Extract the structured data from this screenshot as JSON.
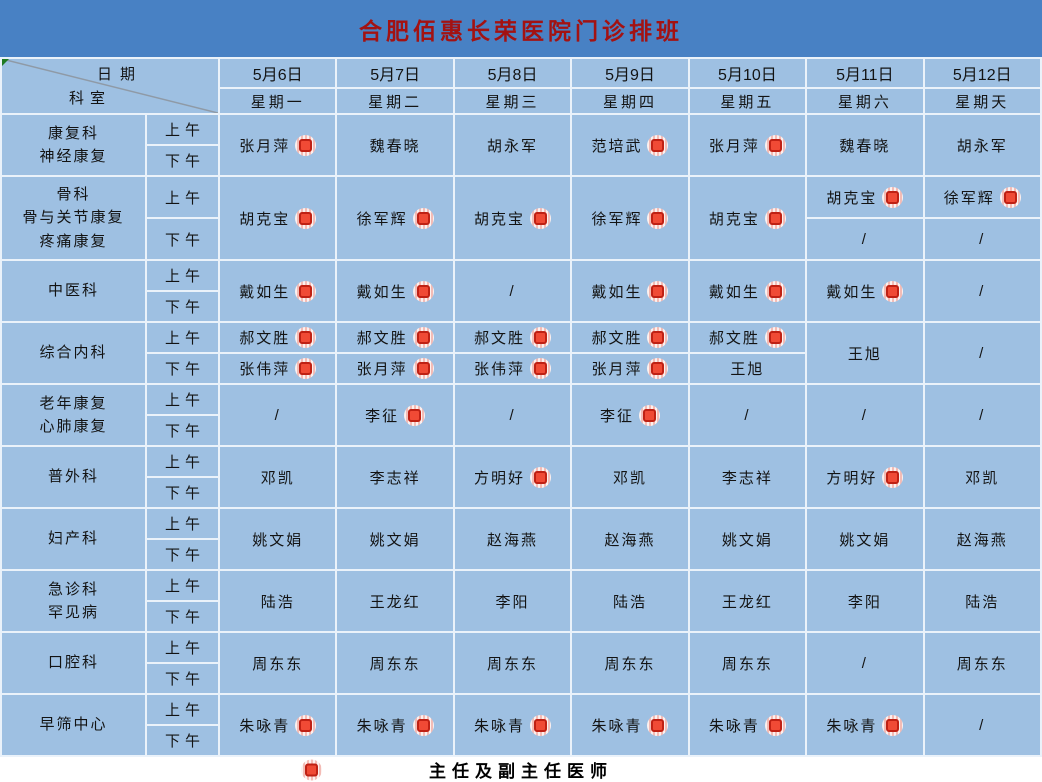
{
  "title": "合肥佰惠长荣医院门诊排班",
  "corner": {
    "top_label": "日期",
    "bottom_label": "科室"
  },
  "time_slots": [
    "上午",
    "下午"
  ],
  "columns": [
    {
      "date": "5月6日",
      "weekday": "星期一"
    },
    {
      "date": "5月7日",
      "weekday": "星期二"
    },
    {
      "date": "5月8日",
      "weekday": "星期三"
    },
    {
      "date": "5月9日",
      "weekday": "星期四"
    },
    {
      "date": "5月10日",
      "weekday": "星期五"
    },
    {
      "date": "5月11日",
      "weekday": "星期六"
    },
    {
      "date": "5月12日",
      "weekday": "星期天"
    }
  ],
  "rows": [
    {
      "department": [
        "康复科",
        "神经康复"
      ],
      "cells": [
        {
          "span": "both",
          "name": "张月萍",
          "badge": true
        },
        {
          "span": "both",
          "name": "魏春晓",
          "badge": false
        },
        {
          "span": "both",
          "name": "胡永军",
          "badge": false
        },
        {
          "span": "both",
          "name": "范培武",
          "badge": true
        },
        {
          "span": "both",
          "name": "张月萍",
          "badge": true
        },
        {
          "span": "both",
          "name": "魏春晓",
          "badge": false
        },
        {
          "span": "both",
          "name": "胡永军",
          "badge": false
        }
      ]
    },
    {
      "department": [
        "骨科",
        "骨与关节康复",
        "疼痛康复"
      ],
      "cells": [
        {
          "span": "both",
          "name": "胡克宝",
          "badge": true
        },
        {
          "span": "both",
          "name": "徐军辉",
          "badge": true
        },
        {
          "span": "both",
          "name": "胡克宝",
          "badge": true
        },
        {
          "span": "both",
          "name": "徐军辉",
          "badge": true
        },
        {
          "span": "both",
          "name": "胡克宝",
          "badge": true
        },
        {
          "span": "split",
          "am": {
            "name": "胡克宝",
            "badge": true
          },
          "pm": {
            "name": "/",
            "badge": false
          }
        },
        {
          "span": "split",
          "am": {
            "name": "徐军辉",
            "badge": true
          },
          "pm": {
            "name": "/",
            "badge": false
          }
        }
      ]
    },
    {
      "department": [
        "中医科"
      ],
      "cells": [
        {
          "span": "both",
          "name": "戴如生",
          "badge": true
        },
        {
          "span": "both",
          "name": "戴如生",
          "badge": true
        },
        {
          "span": "both",
          "name": "/",
          "badge": false
        },
        {
          "span": "both",
          "name": "戴如生",
          "badge": true
        },
        {
          "span": "both",
          "name": "戴如生",
          "badge": true
        },
        {
          "span": "both",
          "name": "戴如生",
          "badge": true
        },
        {
          "span": "both",
          "name": "/",
          "badge": false
        }
      ]
    },
    {
      "department": [
        "综合内科"
      ],
      "cells": [
        {
          "span": "split",
          "am": {
            "name": "郝文胜",
            "badge": true
          },
          "pm": {
            "name": "张伟萍",
            "badge": true
          }
        },
        {
          "span": "split",
          "am": {
            "name": "郝文胜",
            "badge": true
          },
          "pm": {
            "name": "张月萍",
            "badge": true
          }
        },
        {
          "span": "split",
          "am": {
            "name": "郝文胜",
            "badge": true
          },
          "pm": {
            "name": "张伟萍",
            "badge": true
          }
        },
        {
          "span": "split",
          "am": {
            "name": "郝文胜",
            "badge": true
          },
          "pm": {
            "name": "张月萍",
            "badge": true
          }
        },
        {
          "span": "split",
          "am": {
            "name": "郝文胜",
            "badge": true
          },
          "pm": {
            "name": "王旭",
            "badge": false
          }
        },
        {
          "span": "both",
          "name": "王旭",
          "badge": false
        },
        {
          "span": "both",
          "name": "/",
          "badge": false
        }
      ]
    },
    {
      "department": [
        "老年康复",
        "心肺康复"
      ],
      "cells": [
        {
          "span": "both",
          "name": "/",
          "badge": false
        },
        {
          "span": "both",
          "name": "李征",
          "badge": true
        },
        {
          "span": "both",
          "name": "/",
          "badge": false
        },
        {
          "span": "both",
          "name": "李征",
          "badge": true
        },
        {
          "span": "both",
          "name": "/",
          "badge": false
        },
        {
          "span": "both",
          "name": "/",
          "badge": false
        },
        {
          "span": "both",
          "name": "/",
          "badge": false
        }
      ]
    },
    {
      "department": [
        "普外科"
      ],
      "cells": [
        {
          "span": "both",
          "name": "邓凯",
          "badge": false
        },
        {
          "span": "both",
          "name": "李志祥",
          "badge": false
        },
        {
          "span": "both",
          "name": "方明好",
          "badge": true
        },
        {
          "span": "both",
          "name": "邓凯",
          "badge": false
        },
        {
          "span": "both",
          "name": "李志祥",
          "badge": false
        },
        {
          "span": "both",
          "name": "方明好",
          "badge": true
        },
        {
          "span": "both",
          "name": "邓凯",
          "badge": false
        }
      ]
    },
    {
      "department": [
        "妇产科"
      ],
      "cells": [
        {
          "span": "both",
          "name": "姚文娟",
          "badge": false
        },
        {
          "span": "both",
          "name": "姚文娟",
          "badge": false
        },
        {
          "span": "both",
          "name": "赵海燕",
          "badge": false
        },
        {
          "span": "both",
          "name": "赵海燕",
          "badge": false
        },
        {
          "span": "both",
          "name": "姚文娟",
          "badge": false
        },
        {
          "span": "both",
          "name": "姚文娟",
          "badge": false
        },
        {
          "span": "both",
          "name": "赵海燕",
          "badge": false
        }
      ]
    },
    {
      "department": [
        "急诊科",
        "罕见病"
      ],
      "cells": [
        {
          "span": "both",
          "name": "陆浩",
          "badge": false
        },
        {
          "span": "both",
          "name": "王龙红",
          "badge": false
        },
        {
          "span": "both",
          "name": "李阳",
          "badge": false
        },
        {
          "span": "both",
          "name": "陆浩",
          "badge": false
        },
        {
          "span": "both",
          "name": "王龙红",
          "badge": false
        },
        {
          "span": "both",
          "name": "李阳",
          "badge": false
        },
        {
          "span": "both",
          "name": "陆浩",
          "badge": false
        }
      ]
    },
    {
      "department": [
        "口腔科"
      ],
      "cells": [
        {
          "span": "both",
          "name": "周东东",
          "badge": false
        },
        {
          "span": "both",
          "name": "周东东",
          "badge": false
        },
        {
          "span": "both",
          "name": "周东东",
          "badge": false
        },
        {
          "span": "both",
          "name": "周东东",
          "badge": false
        },
        {
          "span": "both",
          "name": "周东东",
          "badge": false
        },
        {
          "span": "both",
          "name": "/",
          "badge": false
        },
        {
          "span": "both",
          "name": "周东东",
          "badge": false
        }
      ]
    },
    {
      "department": [
        "早筛中心"
      ],
      "cells": [
        {
          "span": "both",
          "name": "朱咏青",
          "badge": true
        },
        {
          "span": "both",
          "name": "朱咏青",
          "badge": true
        },
        {
          "span": "both",
          "name": "朱咏青",
          "badge": true
        },
        {
          "span": "both",
          "name": "朱咏青",
          "badge": true
        },
        {
          "span": "both",
          "name": "朱咏青",
          "badge": true
        },
        {
          "span": "both",
          "name": "朱咏青",
          "badge": true
        },
        {
          "span": "both",
          "name": "/",
          "badge": false
        }
      ]
    }
  ],
  "legend": {
    "label": "主任及副主任医师",
    "badge_icon": "chief-physician-badge"
  },
  "colors": {
    "banner_blue": "#4881c4",
    "cell_blue": "#9ec0e2",
    "grid_line": "#eaf2fa",
    "title_red": "#a31212",
    "badge_fill_red": "#f04a35",
    "badge_border_red": "#bf2114",
    "badge_stripe_pink": "#f3bcb6",
    "error_indicator_green": "#1f7a22"
  }
}
